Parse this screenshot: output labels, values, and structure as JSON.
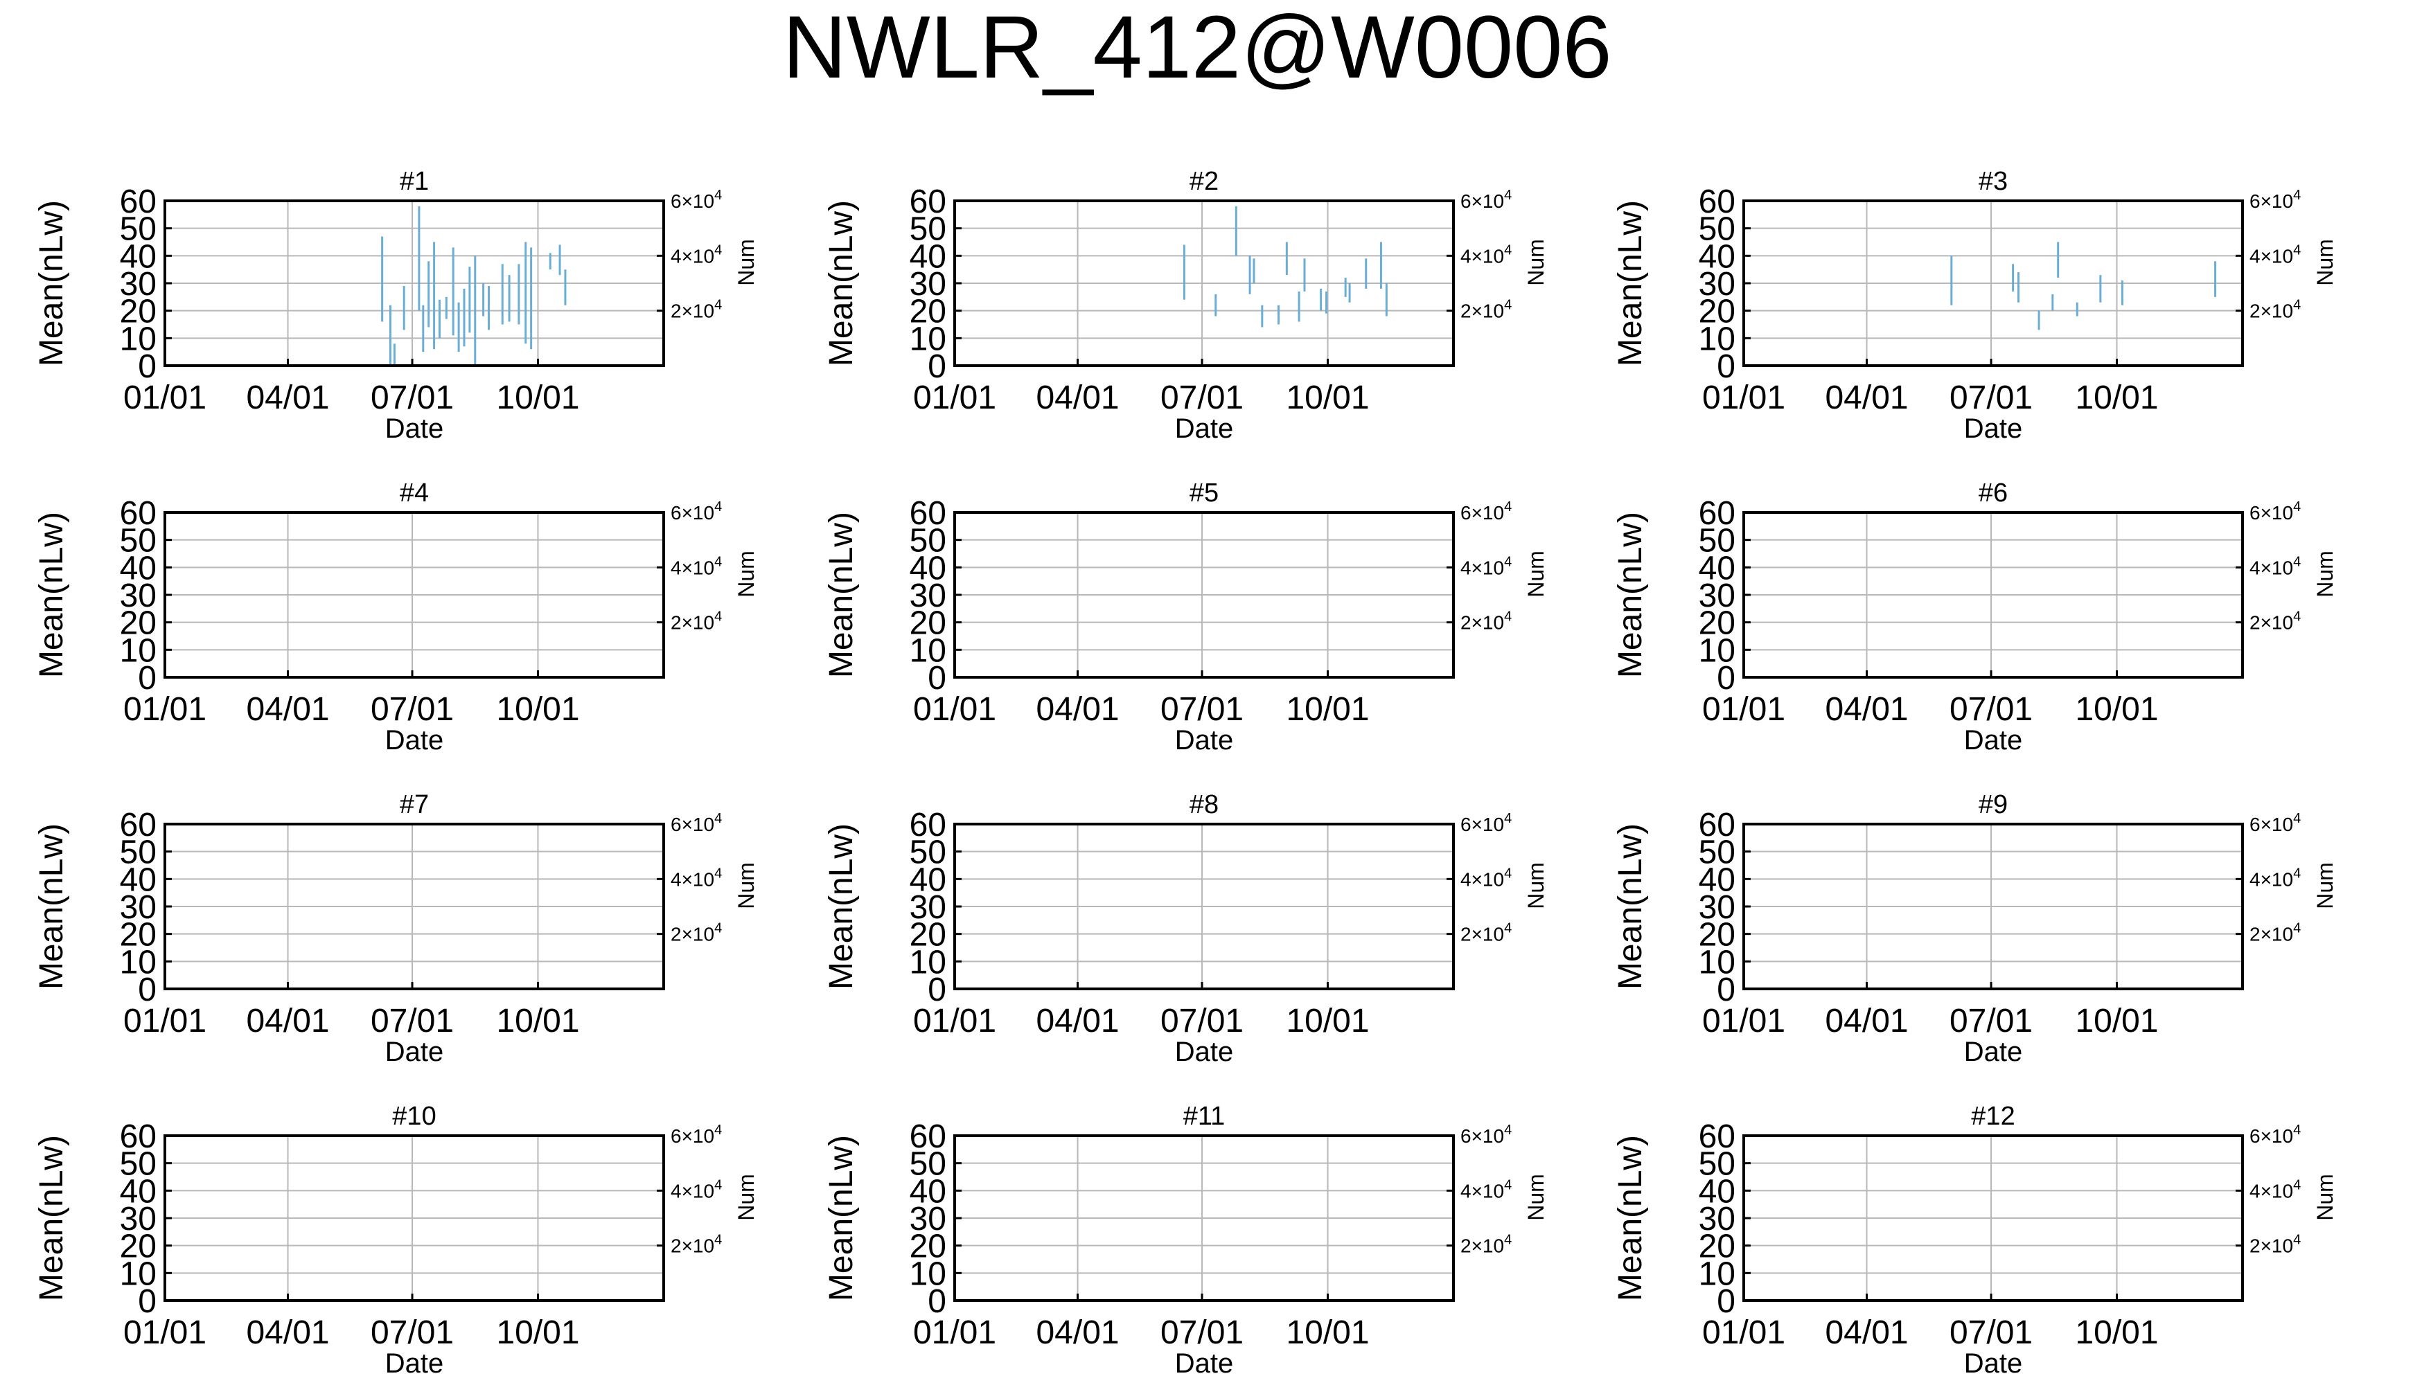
{
  "title": "NWLR_412@W0006",
  "chart_data": [
    {
      "type": "bar",
      "title": "#1",
      "xlabel": "Date",
      "ylabel": "Mean(nLw)",
      "y2label": "Num",
      "xticks": [
        "01/01",
        "04/01",
        "07/01",
        "10/01"
      ],
      "yticks": [
        "0",
        "10",
        "20",
        "30",
        "40",
        "50",
        "60"
      ],
      "y2ticks": [
        "2×10⁴",
        "4×10⁴",
        "6×10⁴"
      ],
      "ylim": [
        0,
        60
      ],
      "xlim_days": [
        0,
        365
      ],
      "grid": true,
      "series": [
        {
          "color": "#6aaed6",
          "ranges": [
            {
              "x": 159,
              "ylo": 16,
              "yhi": 47
            },
            {
              "x": 165,
              "ylo": 0,
              "yhi": 22
            },
            {
              "x": 168,
              "ylo": 0,
              "yhi": 8
            },
            {
              "x": 175,
              "ylo": 13,
              "yhi": 29
            },
            {
              "x": 186,
              "ylo": 20,
              "yhi": 58
            },
            {
              "x": 189,
              "ylo": 5,
              "yhi": 22
            },
            {
              "x": 193,
              "ylo": 14,
              "yhi": 38
            },
            {
              "x": 197,
              "ylo": 6,
              "yhi": 45
            },
            {
              "x": 201,
              "ylo": 10,
              "yhi": 24
            },
            {
              "x": 206,
              "ylo": 17,
              "yhi": 25
            },
            {
              "x": 211,
              "ylo": 11,
              "yhi": 43
            },
            {
              "x": 215,
              "ylo": 5,
              "yhi": 23
            },
            {
              "x": 219,
              "ylo": 7,
              "yhi": 28
            },
            {
              "x": 223,
              "ylo": 12,
              "yhi": 36
            },
            {
              "x": 227,
              "ylo": 0,
              "yhi": 40
            },
            {
              "x": 233,
              "ylo": 18,
              "yhi": 30
            },
            {
              "x": 237,
              "ylo": 13,
              "yhi": 29
            },
            {
              "x": 247,
              "ylo": 15,
              "yhi": 37
            },
            {
              "x": 252,
              "ylo": 16,
              "yhi": 33
            },
            {
              "x": 259,
              "ylo": 15,
              "yhi": 37
            },
            {
              "x": 264,
              "ylo": 8,
              "yhi": 45
            },
            {
              "x": 268,
              "ylo": 6,
              "yhi": 43
            },
            {
              "x": 282,
              "ylo": 35,
              "yhi": 41
            },
            {
              "x": 289,
              "ylo": 33,
              "yhi": 44
            },
            {
              "x": 293,
              "ylo": 22,
              "yhi": 35
            }
          ]
        }
      ]
    },
    {
      "type": "bar",
      "title": "#2",
      "xlabel": "Date",
      "ylabel": "Mean(nLw)",
      "y2label": "Num",
      "xticks": [
        "01/01",
        "04/01",
        "07/01",
        "10/01"
      ],
      "yticks": [
        "0",
        "10",
        "20",
        "30",
        "40",
        "50",
        "60"
      ],
      "y2ticks": [
        "2×10⁴",
        "4×10⁴",
        "6×10⁴"
      ],
      "ylim": [
        0,
        60
      ],
      "xlim_days": [
        0,
        365
      ],
      "grid": true,
      "series": [
        {
          "color": "#6aaed6",
          "ranges": [
            {
              "x": 168,
              "ylo": 24,
              "yhi": 44
            },
            {
              "x": 191,
              "ylo": 18,
              "yhi": 26
            },
            {
              "x": 206,
              "ylo": 40,
              "yhi": 58
            },
            {
              "x": 216,
              "ylo": 26,
              "yhi": 40
            },
            {
              "x": 219,
              "ylo": 30,
              "yhi": 39
            },
            {
              "x": 225,
              "ylo": 14,
              "yhi": 22
            },
            {
              "x": 237,
              "ylo": 15,
              "yhi": 22
            },
            {
              "x": 243,
              "ylo": 33,
              "yhi": 45
            },
            {
              "x": 252,
              "ylo": 16,
              "yhi": 27
            },
            {
              "x": 256,
              "ylo": 27,
              "yhi": 39
            },
            {
              "x": 268,
              "ylo": 20,
              "yhi": 28
            },
            {
              "x": 272,
              "ylo": 19,
              "yhi": 27
            },
            {
              "x": 286,
              "ylo": 25,
              "yhi": 32
            },
            {
              "x": 289,
              "ylo": 23,
              "yhi": 30
            },
            {
              "x": 301,
              "ylo": 28,
              "yhi": 39
            },
            {
              "x": 312,
              "ylo": 28,
              "yhi": 45
            },
            {
              "x": 316,
              "ylo": 18,
              "yhi": 30
            }
          ]
        }
      ]
    },
    {
      "type": "bar",
      "title": "#3",
      "xlabel": "Date",
      "ylabel": "Mean(nLw)",
      "y2label": "Num",
      "xticks": [
        "01/01",
        "04/01",
        "07/01",
        "10/01"
      ],
      "yticks": [
        "0",
        "10",
        "20",
        "30",
        "40",
        "50",
        "60"
      ],
      "y2ticks": [
        "2×10⁴",
        "4×10⁴",
        "6×10⁴"
      ],
      "ylim": [
        0,
        60
      ],
      "xlim_days": [
        0,
        365
      ],
      "grid": true,
      "series": [
        {
          "color": "#6aaed6",
          "ranges": [
            {
              "x": 152,
              "ylo": 22,
              "yhi": 40
            },
            {
              "x": 197,
              "ylo": 27,
              "yhi": 37
            },
            {
              "x": 201,
              "ylo": 23,
              "yhi": 34
            },
            {
              "x": 216,
              "ylo": 13,
              "yhi": 20
            },
            {
              "x": 226,
              "ylo": 20,
              "yhi": 26
            },
            {
              "x": 230,
              "ylo": 32,
              "yhi": 45
            },
            {
              "x": 244,
              "ylo": 18,
              "yhi": 23
            },
            {
              "x": 261,
              "ylo": 23,
              "yhi": 33
            },
            {
              "x": 277,
              "ylo": 22,
              "yhi": 31
            },
            {
              "x": 345,
              "ylo": 25,
              "yhi": 38
            }
          ]
        }
      ]
    },
    {
      "type": "bar",
      "title": "#4",
      "xlabel": "Date",
      "ylabel": "Mean(nLw)",
      "y2label": "Num",
      "xticks": [
        "01/01",
        "04/01",
        "07/01",
        "10/01"
      ],
      "yticks": [
        "0",
        "10",
        "20",
        "30",
        "40",
        "50",
        "60"
      ],
      "y2ticks": [
        "2×10⁴",
        "4×10⁴",
        "6×10⁴"
      ],
      "ylim": [
        0,
        60
      ],
      "xlim_days": [
        0,
        365
      ],
      "grid": true,
      "series": []
    },
    {
      "type": "bar",
      "title": "#5",
      "xlabel": "Date",
      "ylabel": "Mean(nLw)",
      "y2label": "Num",
      "xticks": [
        "01/01",
        "04/01",
        "07/01",
        "10/01"
      ],
      "yticks": [
        "0",
        "10",
        "20",
        "30",
        "40",
        "50",
        "60"
      ],
      "y2ticks": [
        "2×10⁴",
        "4×10⁴",
        "6×10⁴"
      ],
      "ylim": [
        0,
        60
      ],
      "xlim_days": [
        0,
        365
      ],
      "grid": true,
      "series": []
    },
    {
      "type": "bar",
      "title": "#6",
      "xlabel": "Date",
      "ylabel": "Mean(nLw)",
      "y2label": "Num",
      "xticks": [
        "01/01",
        "04/01",
        "07/01",
        "10/01"
      ],
      "yticks": [
        "0",
        "10",
        "20",
        "30",
        "40",
        "50",
        "60"
      ],
      "y2ticks": [
        "2×10⁴",
        "4×10⁴",
        "6×10⁴"
      ],
      "ylim": [
        0,
        60
      ],
      "xlim_days": [
        0,
        365
      ],
      "grid": true,
      "series": []
    },
    {
      "type": "bar",
      "title": "#7",
      "xlabel": "Date",
      "ylabel": "Mean(nLw)",
      "y2label": "Num",
      "xticks": [
        "01/01",
        "04/01",
        "07/01",
        "10/01"
      ],
      "yticks": [
        "0",
        "10",
        "20",
        "30",
        "40",
        "50",
        "60"
      ],
      "y2ticks": [
        "2×10⁴",
        "4×10⁴",
        "6×10⁴"
      ],
      "ylim": [
        0,
        60
      ],
      "xlim_days": [
        0,
        365
      ],
      "grid": true,
      "series": []
    },
    {
      "type": "bar",
      "title": "#8",
      "xlabel": "Date",
      "ylabel": "Mean(nLw)",
      "y2label": "Num",
      "xticks": [
        "01/01",
        "04/01",
        "07/01",
        "10/01"
      ],
      "yticks": [
        "0",
        "10",
        "20",
        "30",
        "40",
        "50",
        "60"
      ],
      "y2ticks": [
        "2×10⁴",
        "4×10⁴",
        "6×10⁴"
      ],
      "ylim": [
        0,
        60
      ],
      "xlim_days": [
        0,
        365
      ],
      "grid": true,
      "series": []
    },
    {
      "type": "bar",
      "title": "#9",
      "xlabel": "Date",
      "ylabel": "Mean(nLw)",
      "y2label": "Num",
      "xticks": [
        "01/01",
        "04/01",
        "07/01",
        "10/01"
      ],
      "yticks": [
        "0",
        "10",
        "20",
        "30",
        "40",
        "50",
        "60"
      ],
      "y2ticks": [
        "2×10⁴",
        "4×10⁴",
        "6×10⁴"
      ],
      "ylim": [
        0,
        60
      ],
      "xlim_days": [
        0,
        365
      ],
      "grid": true,
      "series": []
    },
    {
      "type": "bar",
      "title": "#10",
      "xlabel": "Date",
      "ylabel": "Mean(nLw)",
      "y2label": "Num",
      "xticks": [
        "01/01",
        "04/01",
        "07/01",
        "10/01"
      ],
      "yticks": [
        "0",
        "10",
        "20",
        "30",
        "40",
        "50",
        "60"
      ],
      "y2ticks": [
        "2×10⁴",
        "4×10⁴",
        "6×10⁴"
      ],
      "ylim": [
        0,
        60
      ],
      "xlim_days": [
        0,
        365
      ],
      "grid": true,
      "series": []
    },
    {
      "type": "bar",
      "title": "#11",
      "xlabel": "Date",
      "ylabel": "Mean(nLw)",
      "y2label": "Num",
      "xticks": [
        "01/01",
        "04/01",
        "07/01",
        "10/01"
      ],
      "yticks": [
        "0",
        "10",
        "20",
        "30",
        "40",
        "50",
        "60"
      ],
      "y2ticks": [
        "2×10⁴",
        "4×10⁴",
        "6×10⁴"
      ],
      "ylim": [
        0,
        60
      ],
      "xlim_days": [
        0,
        365
      ],
      "grid": true,
      "series": []
    },
    {
      "type": "bar",
      "title": "#12",
      "xlabel": "Date",
      "ylabel": "Mean(nLw)",
      "y2label": "Num",
      "xticks": [
        "01/01",
        "04/01",
        "07/01",
        "10/01"
      ],
      "yticks": [
        "0",
        "10",
        "20",
        "30",
        "40",
        "50",
        "60"
      ],
      "y2ticks": [
        "2×10⁴",
        "4×10⁴",
        "6×10⁴"
      ],
      "ylim": [
        0,
        60
      ],
      "xlim_days": [
        0,
        365
      ],
      "grid": true,
      "series": []
    }
  ]
}
